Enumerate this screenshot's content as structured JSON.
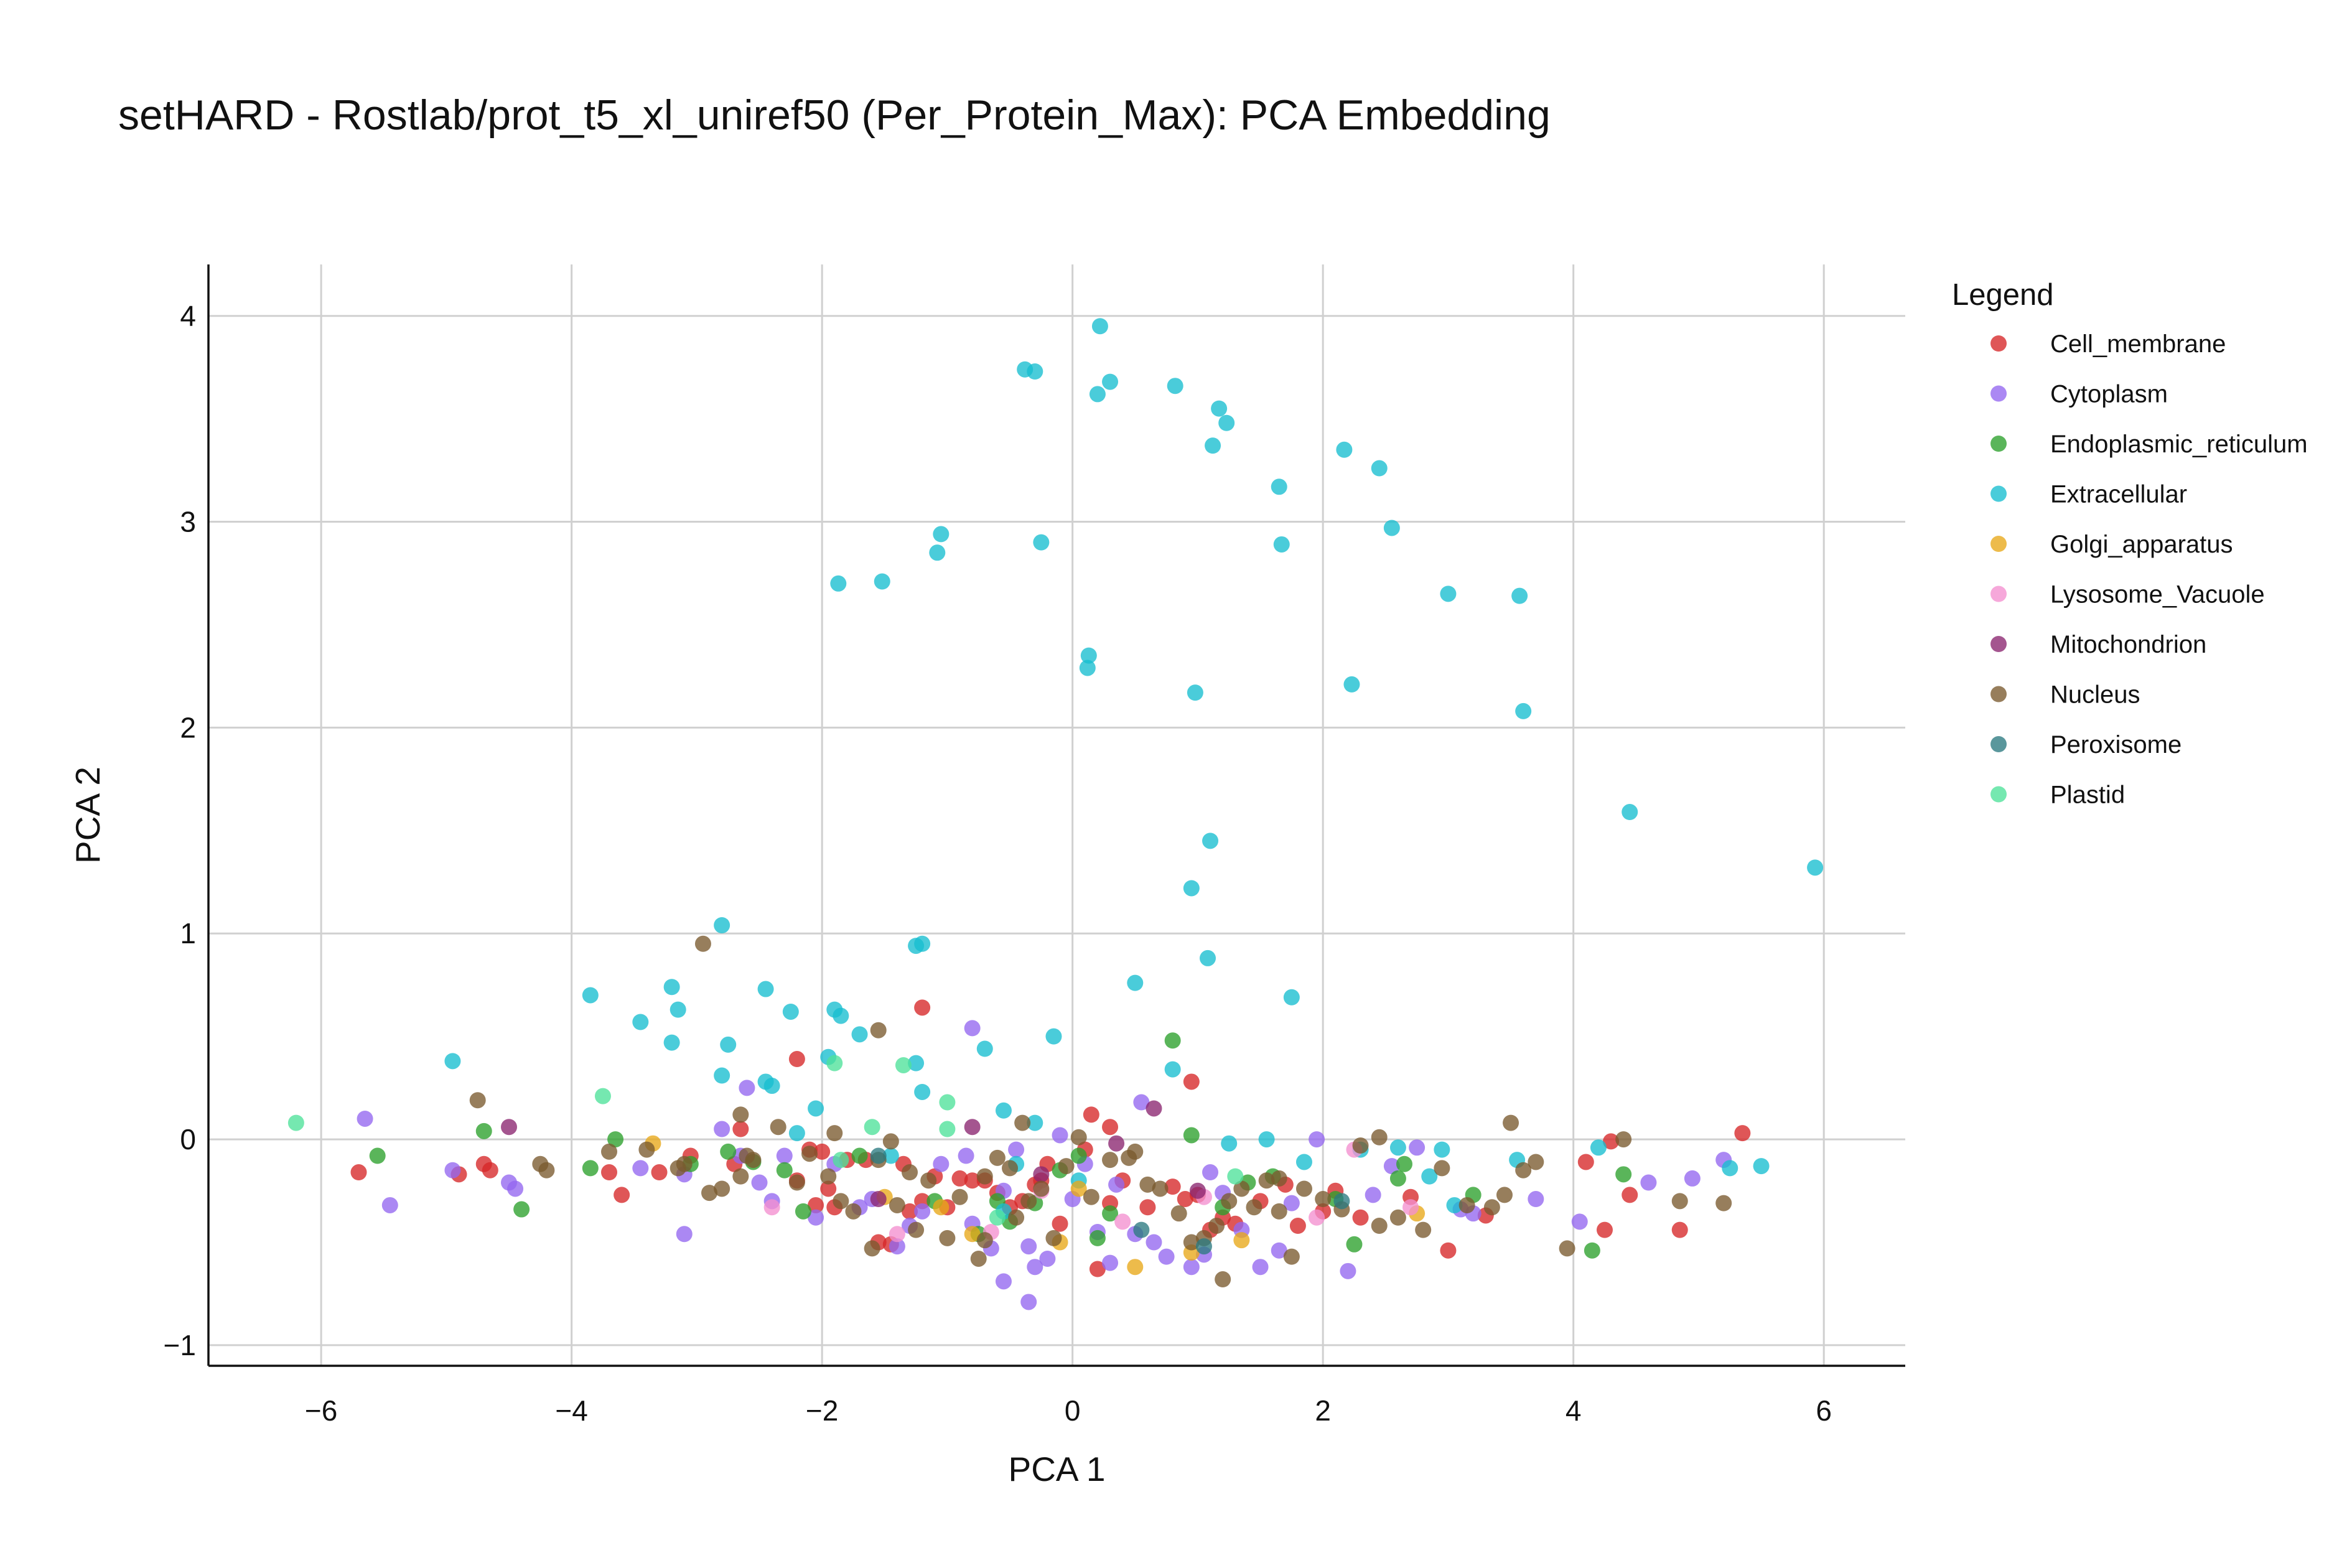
{
  "chart_data": {
    "type": "scatter",
    "title": "setHARD - Rostlab/prot_t5_xl_uniref50 (Per_Protein_Max): PCA Embedding",
    "xlabel": "PCA 1",
    "ylabel": "PCA 2",
    "xlim": [
      -6.9,
      6.65
    ],
    "ylim": [
      -1.1,
      4.25
    ],
    "xticks": [
      -6,
      -4,
      -2,
      0,
      2,
      4,
      6
    ],
    "yticks": [
      -1,
      0,
      1,
      2,
      3,
      4
    ],
    "xtick_labels": [
      "−6",
      "−4",
      "−2",
      "0",
      "2",
      "4",
      "6"
    ],
    "ytick_labels": [
      "−1",
      "0",
      "1",
      "2",
      "3",
      "4"
    ],
    "grid": true,
    "legend": {
      "title": "Legend",
      "position": "right"
    },
    "series": [
      {
        "name": "Cell_membrane",
        "color": "#d62728",
        "x": [
          -5.7,
          -4.9,
          -4.7,
          -4.65,
          -3.7,
          -3.6,
          -3.3,
          -3.05,
          -2.7,
          -2.65,
          -2.2,
          -2.1,
          -2.05,
          -1.95,
          -1.9,
          -1.8,
          -1.55,
          -1.45,
          -1.35,
          -1.3,
          -1.2,
          -1.1,
          -1.0,
          -0.9,
          -0.8,
          -0.7,
          -0.6,
          -0.5,
          -0.4,
          -0.3,
          -0.2,
          -0.1,
          0.1,
          0.2,
          0.3,
          0.4,
          0.6,
          0.8,
          0.9,
          1.0,
          1.1,
          1.2,
          1.3,
          1.5,
          1.7,
          1.8,
          2.0,
          2.1,
          2.3,
          2.7,
          3.0,
          3.3,
          4.1,
          4.25,
          4.3,
          4.45,
          4.85,
          5.35,
          -1.2,
          0.95,
          -2.2,
          0.3,
          -2.0,
          -1.65,
          -0.25,
          0.15
        ],
        "y": [
          -0.16,
          -0.17,
          -0.12,
          -0.15,
          -0.16,
          -0.27,
          -0.16,
          -0.08,
          -0.12,
          0.05,
          -0.2,
          -0.05,
          -0.32,
          -0.24,
          -0.33,
          -0.1,
          -0.5,
          -0.51,
          -0.12,
          -0.35,
          -0.3,
          -0.18,
          -0.33,
          -0.19,
          -0.2,
          -0.2,
          -0.26,
          -0.33,
          -0.3,
          -0.22,
          -0.12,
          -0.41,
          -0.05,
          -0.63,
          0.06,
          -0.2,
          -0.33,
          -0.23,
          -0.29,
          -0.27,
          -0.44,
          -0.38,
          -0.41,
          -0.3,
          -0.22,
          -0.42,
          -0.35,
          -0.25,
          -0.38,
          -0.28,
          -0.54,
          -0.37,
          -0.11,
          -0.44,
          -0.01,
          -0.27,
          -0.44,
          0.03,
          0.64,
          0.28,
          0.39,
          -0.31,
          -0.06,
          -0.1,
          -0.2,
          0.12
        ]
      },
      {
        "name": "Cytoplasm",
        "color": "#9467ef",
        "x": [
          -5.65,
          -5.45,
          -4.95,
          -4.5,
          -4.45,
          -3.45,
          -3.1,
          -3.1,
          -2.8,
          -2.6,
          -2.5,
          -2.4,
          -2.3,
          -2.05,
          -1.9,
          -1.7,
          -1.6,
          -1.4,
          -1.3,
          -1.2,
          -1.05,
          -0.85,
          -0.8,
          -0.65,
          -0.55,
          -0.45,
          -0.35,
          -0.3,
          -0.2,
          -0.1,
          0.0,
          0.1,
          0.2,
          0.35,
          0.5,
          0.65,
          0.75,
          0.95,
          1.05,
          1.2,
          1.35,
          1.5,
          1.65,
          1.75,
          1.95,
          2.2,
          2.4,
          2.55,
          2.75,
          3.1,
          3.2,
          3.7,
          4.05,
          4.6,
          4.95,
          5.2,
          -0.35,
          -0.55,
          -2.65,
          0.55,
          -0.8,
          0.3,
          1.1
        ],
        "y": [
          0.1,
          -0.32,
          -0.15,
          -0.21,
          -0.24,
          -0.14,
          -0.17,
          -0.46,
          0.05,
          0.25,
          -0.21,
          -0.3,
          -0.08,
          -0.38,
          -0.12,
          -0.33,
          -0.29,
          -0.52,
          -0.42,
          -0.35,
          -0.12,
          -0.08,
          -0.41,
          -0.53,
          -0.69,
          -0.05,
          -0.52,
          -0.62,
          -0.58,
          0.02,
          -0.29,
          -0.12,
          -0.45,
          -0.22,
          -0.46,
          -0.5,
          -0.57,
          -0.62,
          -0.56,
          -0.26,
          -0.44,
          -0.62,
          -0.54,
          -0.31,
          0.0,
          -0.64,
          -0.27,
          -0.13,
          -0.04,
          -0.34,
          -0.36,
          -0.29,
          -0.4,
          -0.21,
          -0.19,
          -0.1,
          -0.79,
          -0.25,
          -0.08,
          0.18,
          0.54,
          -0.6,
          -0.16
        ]
      },
      {
        "name": "Endoplasmic_reticulum",
        "color": "#2ca02c",
        "x": [
          -5.55,
          -4.7,
          -4.4,
          -3.85,
          -3.65,
          -3.05,
          -2.75,
          -2.55,
          -2.3,
          -2.15,
          -1.7,
          -1.1,
          -0.75,
          -0.6,
          -0.3,
          -0.1,
          0.2,
          0.3,
          0.8,
          0.95,
          1.2,
          1.4,
          1.6,
          2.1,
          2.6,
          2.65,
          3.2,
          4.15,
          4.4,
          2.25,
          0.05,
          -0.5
        ],
        "y": [
          -0.08,
          0.04,
          -0.34,
          -0.14,
          0.0,
          -0.12,
          -0.06,
          -0.11,
          -0.15,
          -0.35,
          -0.08,
          -0.3,
          -0.46,
          -0.3,
          -0.31,
          -0.15,
          -0.48,
          -0.36,
          0.48,
          0.02,
          -0.33,
          -0.21,
          -0.18,
          -0.29,
          -0.19,
          -0.12,
          -0.27,
          -0.54,
          -0.17,
          -0.51,
          -0.08,
          -0.4
        ]
      },
      {
        "name": "Extracellular",
        "color": "#17becf",
        "x": [
          0.22,
          -0.38,
          -0.3,
          0.3,
          0.2,
          0.82,
          1.17,
          1.23,
          1.12,
          2.17,
          2.45,
          1.65,
          1.67,
          2.55,
          3.0,
          3.57,
          -1.05,
          -1.08,
          -0.25,
          -1.87,
          -1.52,
          0.13,
          0.12,
          0.98,
          2.23,
          3.6,
          4.45,
          5.93,
          1.1,
          0.95,
          1.08,
          1.75,
          0.5,
          -0.15,
          -0.7,
          -2.8,
          -3.85,
          -4.95,
          -3.45,
          -3.2,
          -3.15,
          -3.2,
          -2.75,
          -2.45,
          -2.25,
          -1.9,
          -1.85,
          -1.7,
          -1.25,
          -1.2,
          -1.25,
          -1.2,
          -2.8,
          -2.45,
          -2.4,
          -2.05,
          -1.95,
          -0.55,
          0.8,
          1.55,
          1.85,
          2.3,
          2.6,
          2.85,
          3.05,
          3.55,
          4.2,
          5.25,
          5.5,
          -1.45,
          -0.45,
          -0.55,
          0.05,
          1.25,
          2.95,
          -0.3,
          -2.2
        ],
        "y": [
          3.95,
          3.74,
          3.73,
          3.68,
          3.62,
          3.66,
          3.55,
          3.48,
          3.37,
          3.35,
          3.26,
          3.17,
          2.89,
          2.97,
          2.65,
          2.64,
          2.94,
          2.85,
          2.9,
          2.7,
          2.71,
          2.35,
          2.29,
          2.17,
          2.21,
          2.08,
          1.59,
          1.32,
          1.45,
          1.22,
          0.88,
          0.69,
          0.76,
          0.5,
          0.44,
          1.04,
          0.7,
          0.38,
          0.57,
          0.74,
          0.63,
          0.47,
          0.46,
          0.73,
          0.62,
          0.63,
          0.6,
          0.51,
          0.94,
          0.95,
          0.37,
          0.23,
          0.31,
          0.28,
          0.26,
          0.15,
          0.4,
          0.14,
          0.34,
          0.0,
          -0.11,
          -0.05,
          -0.04,
          -0.18,
          -0.32,
          -0.1,
          -0.04,
          -0.14,
          -0.13,
          -0.08,
          -0.12,
          -0.35,
          -0.2,
          -0.02,
          -0.05,
          0.08,
          0.03
        ]
      },
      {
        "name": "Golgi_apparatus",
        "color": "#e8a818",
        "x": [
          -3.35,
          -1.5,
          -1.05,
          -0.1,
          0.5,
          0.95,
          1.35,
          0.05,
          -0.8,
          2.75
        ],
        "y": [
          -0.02,
          -0.28,
          -0.33,
          -0.5,
          -0.62,
          -0.55,
          -0.49,
          -0.24,
          -0.46,
          -0.36
        ]
      },
      {
        "name": "Lysosome_Vacuole",
        "color": "#f48fcf",
        "x": [
          -2.4,
          -1.4,
          -0.65,
          0.4,
          1.05,
          2.25,
          -0.25,
          2.7,
          1.95
        ],
        "y": [
          -0.33,
          -0.46,
          -0.45,
          -0.4,
          -0.28,
          -0.05,
          -0.25,
          -0.33,
          -0.38
        ]
      },
      {
        "name": "Mitochondrion",
        "color": "#8b2570",
        "x": [
          -4.5,
          -0.8,
          0.65,
          0.35,
          -1.55,
          1.0,
          -0.25
        ],
        "y": [
          0.06,
          0.06,
          0.15,
          -0.02,
          -0.29,
          -0.25,
          -0.17
        ]
      },
      {
        "name": "Nucleus",
        "color": "#7a5a2e",
        "x": [
          -4.75,
          -4.25,
          -4.2,
          -3.7,
          -3.4,
          -3.1,
          -3.15,
          -2.9,
          -2.8,
          -2.65,
          -2.6,
          -2.55,
          -2.35,
          -2.2,
          -2.1,
          -1.95,
          -1.85,
          -1.75,
          -1.6,
          -1.55,
          -1.45,
          -1.4,
          -1.3,
          -1.25,
          -1.15,
          -1.0,
          -0.9,
          -0.75,
          -0.7,
          -0.6,
          -0.5,
          -0.4,
          -0.35,
          -0.25,
          -0.15,
          -0.05,
          0.05,
          0.15,
          0.3,
          0.45,
          0.6,
          0.7,
          0.85,
          0.95,
          1.05,
          1.15,
          1.25,
          1.35,
          1.45,
          1.55,
          1.65,
          1.75,
          1.85,
          2.0,
          2.15,
          2.3,
          2.45,
          2.6,
          2.8,
          2.95,
          3.15,
          3.35,
          3.45,
          3.6,
          3.7,
          3.95,
          4.4,
          4.85,
          5.2,
          -2.95,
          -1.55,
          -2.65,
          3.5,
          1.2,
          -0.7,
          0.5,
          1.65,
          -1.9,
          2.45,
          -0.45
        ],
        "y": [
          0.19,
          -0.12,
          -0.15,
          -0.06,
          -0.05,
          -0.12,
          -0.14,
          -0.26,
          -0.24,
          0.12,
          -0.08,
          -0.1,
          0.06,
          -0.21,
          -0.07,
          -0.18,
          -0.3,
          -0.35,
          -0.53,
          -0.1,
          -0.01,
          -0.32,
          -0.16,
          -0.44,
          -0.2,
          -0.48,
          -0.28,
          -0.58,
          -0.49,
          -0.09,
          -0.14,
          0.08,
          -0.3,
          -0.24,
          -0.48,
          -0.13,
          0.01,
          -0.28,
          -0.1,
          -0.09,
          -0.22,
          -0.24,
          -0.36,
          -0.5,
          -0.48,
          -0.42,
          -0.3,
          -0.24,
          -0.33,
          -0.2,
          -0.35,
          -0.57,
          -0.24,
          -0.29,
          -0.34,
          -0.03,
          -0.42,
          -0.38,
          -0.44,
          -0.14,
          -0.32,
          -0.33,
          -0.27,
          -0.15,
          -0.11,
          -0.53,
          0.0,
          -0.3,
          -0.31,
          0.95,
          0.53,
          -0.18,
          0.08,
          -0.68,
          -0.18,
          -0.06,
          -0.19,
          0.03,
          0.01,
          -0.38
        ]
      },
      {
        "name": "Peroxisome",
        "color": "#2b7a80",
        "x": [
          1.05,
          -1.55,
          2.15,
          0.55
        ],
        "y": [
          -0.52,
          -0.08,
          -0.3,
          -0.44
        ]
      },
      {
        "name": "Plastid",
        "color": "#4ee29a",
        "x": [
          -6.2,
          -3.75,
          -1.9,
          -1.35,
          -1.0,
          -1.6,
          -1.0,
          -0.6,
          1.3,
          -1.85
        ],
        "y": [
          0.08,
          0.21,
          0.37,
          0.36,
          0.18,
          0.06,
          0.05,
          -0.38,
          -0.18,
          -0.1
        ]
      }
    ]
  }
}
